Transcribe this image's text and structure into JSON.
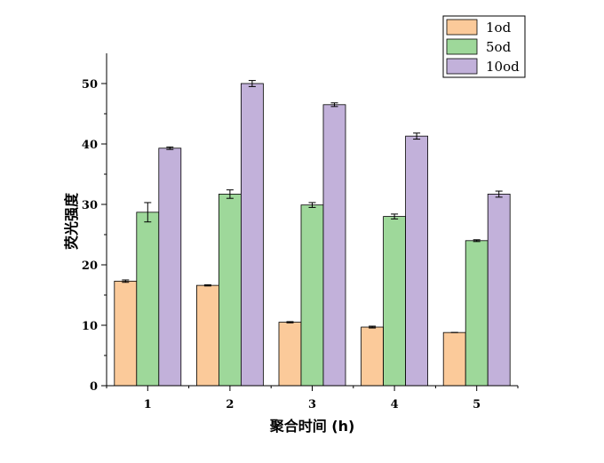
{
  "chart_data": {
    "type": "bar",
    "title": "",
    "xlabel": "聚合时间 (h)",
    "ylabel": "荧光强度",
    "categories": [
      "1",
      "2",
      "3",
      "4",
      "5"
    ],
    "ylim": [
      0,
      55
    ],
    "yticks": [
      0,
      10,
      20,
      30,
      40,
      50
    ],
    "legend_position": "top-right",
    "series": [
      {
        "name": "1od",
        "color": "#FBCA9A",
        "values": [
          17.3,
          16.6,
          10.5,
          9.7,
          8.8
        ],
        "errors": [
          0.2,
          0.1,
          0.1,
          0.15,
          0
        ]
      },
      {
        "name": "5od",
        "color": "#9ED89A",
        "values": [
          28.7,
          31.7,
          29.9,
          28.0,
          24.0
        ],
        "errors": [
          1.6,
          0.7,
          0.4,
          0.4,
          0.15
        ]
      },
      {
        "name": "10od",
        "color": "#C2B1DA",
        "values": [
          39.3,
          50.0,
          46.5,
          41.3,
          31.7
        ],
        "errors": [
          0.2,
          0.5,
          0.3,
          0.5,
          0.5
        ]
      }
    ]
  }
}
